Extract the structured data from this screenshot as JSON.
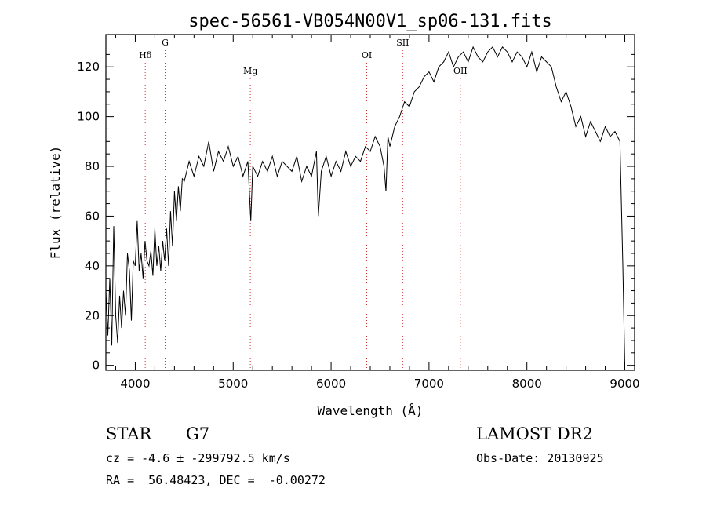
{
  "chart_data": {
    "type": "line",
    "title": "spec-56561-VB054N00V1_sp06-131.fits",
    "xlabel": "Wavelength (Å)",
    "ylabel": "Flux (relative)",
    "xlim": [
      3700,
      9100
    ],
    "ylim": [
      -2,
      133
    ],
    "xticks": [
      4000,
      5000,
      6000,
      7000,
      8000,
      9000
    ],
    "yticks": [
      0,
      20,
      40,
      60,
      80,
      100,
      120
    ],
    "grid": false,
    "line_color": "#000000",
    "marker_color": "#cc3333",
    "spectral_lines": [
      {
        "label": "Hδ",
        "wavelength": 4102
      },
      {
        "label": "G",
        "wavelength": 4305
      },
      {
        "label": "Mg",
        "wavelength": 5175
      },
      {
        "label": "OI",
        "wavelength": 6364
      },
      {
        "label": "SII",
        "wavelength": 6731
      },
      {
        "label": "OII",
        "wavelength": 7320
      }
    ],
    "series": [
      {
        "x": [
          3700,
          3720,
          3740,
          3760,
          3780,
          3800,
          3820,
          3840,
          3860,
          3880,
          3900,
          3920,
          3940,
          3960,
          3980,
          4000,
          4020,
          4040,
          4060,
          4080,
          4100,
          4120,
          4140,
          4160,
          4180,
          4200,
          4220,
          4240,
          4260,
          4280,
          4300,
          4320,
          4340,
          4360,
          4380,
          4400,
          4420,
          4440,
          4460,
          4480,
          4500,
          4550,
          4600,
          4650,
          4700,
          4750,
          4800,
          4850,
          4900,
          4950,
          5000,
          5050,
          5100,
          5150,
          5180,
          5200,
          5250,
          5300,
          5350,
          5400,
          5450,
          5500,
          5550,
          5600,
          5650,
          5700,
          5750,
          5800,
          5850,
          5870,
          5900,
          5950,
          6000,
          6050,
          6100,
          6150,
          6200,
          6250,
          6300,
          6350,
          6400,
          6450,
          6500,
          6540,
          6560,
          6580,
          6600,
          6650,
          6700,
          6750,
          6800,
          6850,
          6900,
          6950,
          7000,
          7050,
          7100,
          7150,
          7200,
          7250,
          7300,
          7350,
          7400,
          7450,
          7500,
          7550,
          7600,
          7650,
          7700,
          7750,
          7800,
          7850,
          7900,
          7950,
          8000,
          8050,
          8100,
          8150,
          8200,
          8250,
          8300,
          8350,
          8400,
          8450,
          8500,
          8550,
          8600,
          8650,
          8700,
          8750,
          8800,
          8850,
          8900,
          8950,
          8980,
          9000
        ],
        "y": [
          30,
          12,
          35,
          8,
          56,
          20,
          9,
          28,
          15,
          30,
          20,
          45,
          38,
          18,
          42,
          40,
          58,
          38,
          45,
          35,
          50,
          42,
          40,
          46,
          36,
          55,
          40,
          48,
          38,
          50,
          42,
          55,
          40,
          62,
          48,
          70,
          58,
          72,
          62,
          75,
          74,
          82,
          76,
          84,
          80,
          90,
          78,
          86,
          82,
          88,
          80,
          84,
          76,
          82,
          58,
          80,
          76,
          82,
          78,
          84,
          76,
          82,
          80,
          78,
          84,
          74,
          80,
          76,
          86,
          60,
          78,
          84,
          76,
          82,
          78,
          86,
          80,
          84,
          82,
          88,
          86,
          92,
          88,
          80,
          70,
          92,
          88,
          96,
          100,
          106,
          104,
          110,
          112,
          116,
          118,
          114,
          120,
          122,
          126,
          120,
          124,
          126,
          122,
          128,
          124,
          122,
          126,
          128,
          124,
          128,
          126,
          122,
          126,
          124,
          120,
          126,
          118,
          124,
          122,
          120,
          112,
          106,
          110,
          104,
          96,
          100,
          92,
          98,
          94,
          90,
          96,
          92,
          94,
          90,
          40,
          0
        ]
      }
    ]
  },
  "info": {
    "class": "STAR",
    "subclass": "G7",
    "release": "LAMOST DR2",
    "cz": "cz = -4.6 ± -299792.5 km/s",
    "obs_date": "Obs-Date: 20130925",
    "radec": "RA =  56.48423, DEC =  -0.00272"
  }
}
